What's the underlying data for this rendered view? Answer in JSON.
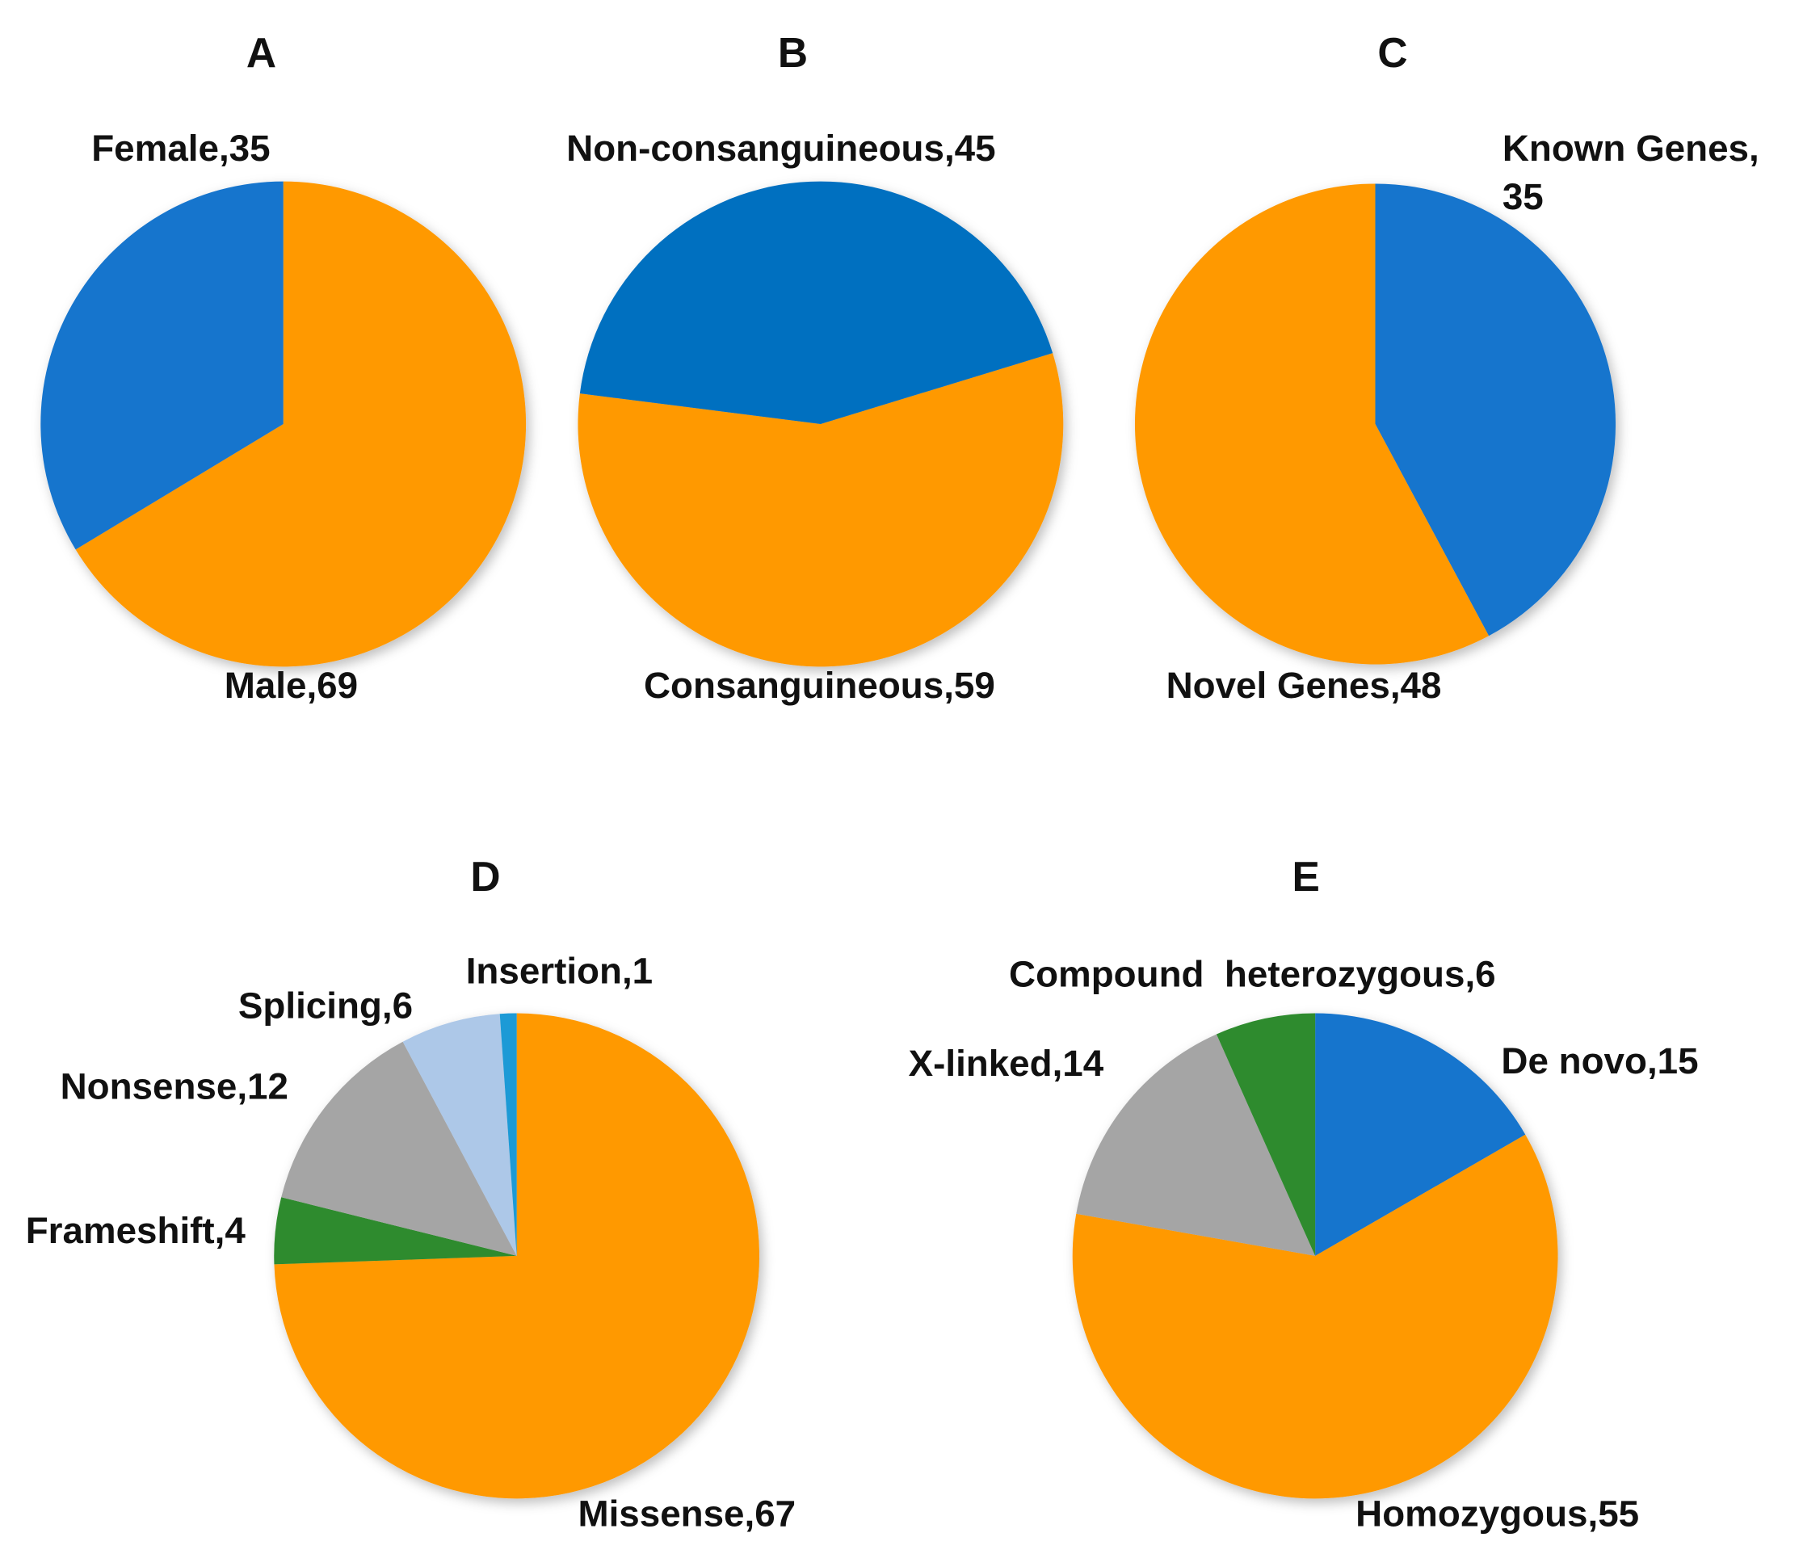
{
  "chart_data": [
    {
      "type": "pie",
      "title": "A",
      "slices": [
        {
          "label": "Male,69",
          "name": "Male",
          "value": 69,
          "color": "#FF9900"
        },
        {
          "label": "Female,35",
          "name": "Female",
          "value": 35,
          "color": "#1874CD"
        }
      ]
    },
    {
      "type": "pie",
      "title": "B",
      "slices": [
        {
          "label": "Consanguineous,59",
          "name": "Consanguineous",
          "value": 59,
          "color": "#FF9900"
        },
        {
          "label": "Non-consanguineous,45",
          "name": "Non-consanguineous",
          "value": 45,
          "color": "#0070C0"
        }
      ]
    },
    {
      "type": "pie",
      "title": "C",
      "slices": [
        {
          "label": "Known Genes,",
          "label2": "35",
          "name": "Known Genes",
          "value": 35,
          "color": "#1874CD"
        },
        {
          "label": "Novel Genes,48",
          "name": "Novel Genes",
          "value": 48,
          "color": "#FF9900"
        }
      ]
    },
    {
      "type": "pie",
      "title": "D",
      "slices": [
        {
          "label": "Missense,67",
          "name": "Missense",
          "value": 67,
          "color": "#FF9900"
        },
        {
          "label": "Frameshift,4",
          "name": "Frameshift",
          "value": 4,
          "color": "#2E8B2E"
        },
        {
          "label": "Nonsense,12",
          "name": "Nonsense",
          "value": 12,
          "color": "#A5A5A5"
        },
        {
          "label": "Splicing,6",
          "name": "Splicing",
          "value": 6,
          "color": "#ADC8E8"
        },
        {
          "label": "Insertion,1",
          "name": "Insertion",
          "value": 1,
          "color": "#1A9AD6"
        }
      ]
    },
    {
      "type": "pie",
      "title": "E",
      "slices": [
        {
          "label": "De novo,15",
          "name": "De novo",
          "value": 15,
          "color": "#1874CD"
        },
        {
          "label": "Homozygous,55",
          "name": "Homozygous",
          "value": 55,
          "color": "#FF9900"
        },
        {
          "label": "X-linked,14",
          "name": "X-linked",
          "value": 14,
          "color": "#A5A5A5"
        },
        {
          "label": "Compound  heterozygous,6",
          "name": "Compound heterozygous",
          "value": 6,
          "color": "#2E8B2E"
        }
      ]
    }
  ]
}
